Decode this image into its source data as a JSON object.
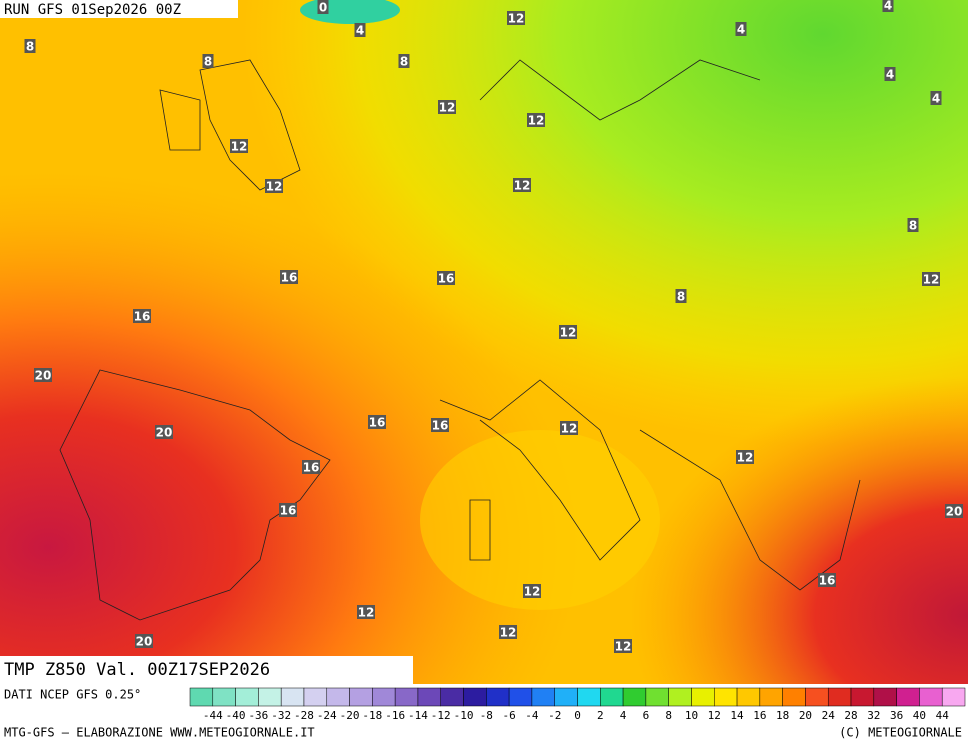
{
  "header": {
    "run": "RUN GFS 01Sep2026 00Z"
  },
  "map": {
    "isotherm_labels": [
      0,
      4,
      12,
      4,
      8,
      8,
      8,
      4,
      4,
      4,
      12,
      12,
      12,
      12,
      12,
      8,
      12,
      16,
      16,
      8,
      16,
      12,
      20,
      16,
      16,
      12,
      20,
      12,
      16,
      16,
      20,
      16,
      12,
      12,
      12,
      12,
      20
    ]
  },
  "footer": {
    "field": "TMP Z850 Val. 00Z17SEP2026",
    "source": "DATI NCEP GFS 0.25°",
    "credit": "MTG-GFS — ELABORAZIONE WWW.METEOGIORNALE.IT",
    "copyright": "(C) METEOGIORNALE"
  },
  "colorbar": {
    "ticks": [
      -44,
      -40,
      -36,
      -32,
      -28,
      -24,
      -20,
      -18,
      -16,
      -14,
      -12,
      -10,
      -8,
      -6,
      -4,
      -2,
      0,
      2,
      4,
      6,
      8,
      10,
      12,
      14,
      16,
      18,
      20,
      24,
      28,
      32,
      36,
      40,
      44
    ],
    "colors": [
      "#5fd9b0",
      "#7fe2c4",
      "#a3eed8",
      "#c4f2e6",
      "#d8e4f2",
      "#d4d0f0",
      "#c4b8ea",
      "#b4a0e2",
      "#a088d8",
      "#8868c8",
      "#6c48b8",
      "#4a2ca4",
      "#2c1ca0",
      "#2030c8",
      "#2050e8",
      "#2080f4",
      "#20b0f8",
      "#20d8f0",
      "#20d890",
      "#30cc30",
      "#70e030",
      "#b0f020",
      "#e8f000",
      "#ffe400",
      "#ffc800",
      "#ffa400",
      "#ff8000",
      "#f65020",
      "#e02c20",
      "#c81830",
      "#b01048",
      "#d02090",
      "#e860d0",
      "#f8a8f0"
    ]
  }
}
